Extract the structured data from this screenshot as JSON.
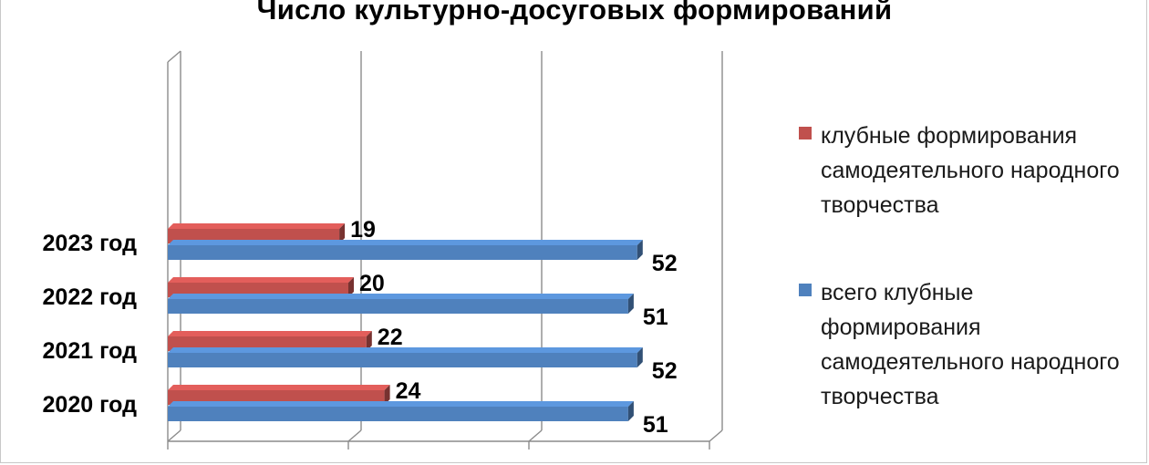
{
  "chart_data": {
    "type": "bar",
    "orientation": "horizontal",
    "style": "3d",
    "title": "Число культурно-досуговых формирований",
    "xlabel": "",
    "ylabel": "",
    "categories": [
      "2020 год",
      "2021 год",
      "2022 год",
      "2023 год"
    ],
    "xlim": [
      0,
      60
    ],
    "grid": true,
    "legend_position": "right",
    "series": [
      {
        "name": "всего клубные формирования самодеятельного народного творчества",
        "color": "#4f81bd",
        "values": [
          51,
          52,
          51,
          52
        ]
      },
      {
        "name": "клубные формирования самодеятельного народного творчества",
        "color": "#c0504d",
        "values": [
          24,
          22,
          20,
          19
        ]
      }
    ]
  },
  "legend": [
    {
      "label": "клубные формирования самодеятельного народного творчества",
      "color": "#c0504d"
    },
    {
      "label": "всего клубные формирования самодеятельного народного творчества",
      "color": "#4f81bd"
    }
  ]
}
